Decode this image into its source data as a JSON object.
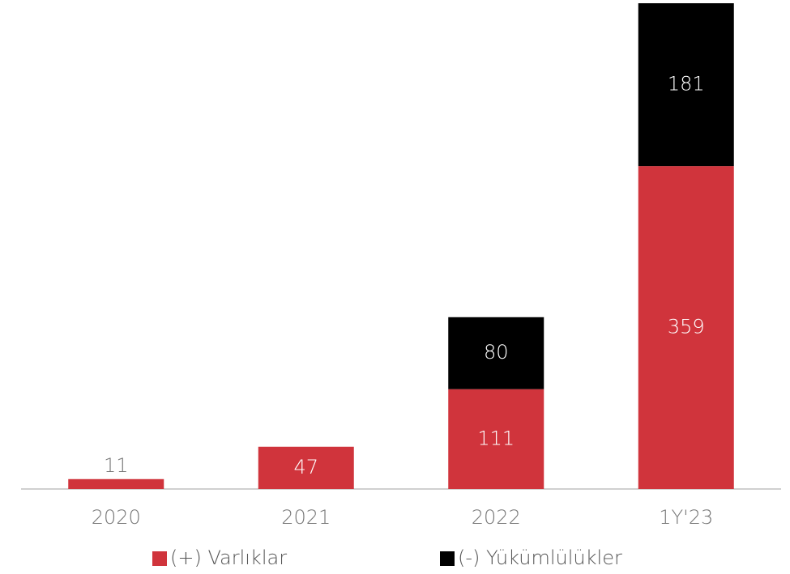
{
  "chart_data": {
    "type": "bar",
    "stacked": true,
    "categories": [
      "2020",
      "2021",
      "2022",
      "1Y'23"
    ],
    "series": [
      {
        "name": "(+) Varlıklar",
        "color": "#d0343c",
        "values": [
          11,
          47,
          111,
          359
        ]
      },
      {
        "name": "(-) Yükümlülükler",
        "color": "#000000",
        "values": [
          null,
          null,
          80,
          181
        ]
      }
    ],
    "ylim": [
      0,
      540
    ]
  }
}
